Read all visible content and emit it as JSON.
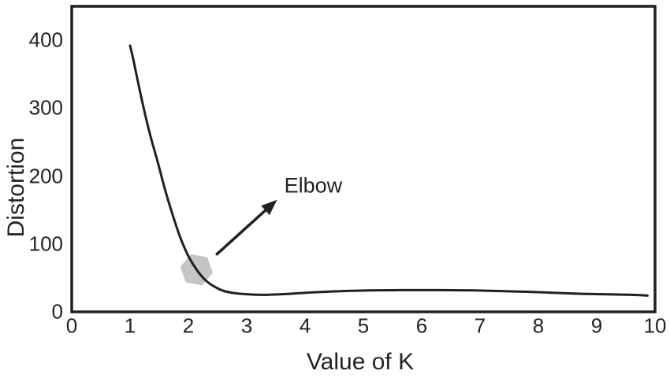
{
  "colors": {
    "background": "#ffffff",
    "line": "#221f20",
    "text": "#242122",
    "box": "#221f20",
    "marker_fill": "#c5c5c5",
    "arrow": "#221f20"
  },
  "chart_data": {
    "type": "line",
    "title": "",
    "xlabel": "Value of K",
    "ylabel": "Distortion",
    "xlim": [
      0,
      10
    ],
    "ylim": [
      0,
      450
    ],
    "x_ticks": [
      "0",
      "1",
      "2",
      "3",
      "4",
      "5",
      "6",
      "7",
      "8",
      "9",
      "10"
    ],
    "x_tick_values": [
      0,
      1,
      2,
      3,
      4,
      5,
      6,
      7,
      8,
      9,
      10
    ],
    "y_ticks": [
      "0",
      "100",
      "200",
      "300",
      "400"
    ],
    "y_tick_values": [
      0,
      100,
      200,
      300,
      400
    ],
    "grid": false,
    "legend": false,
    "series": [
      {
        "name": "distortion-vs-k",
        "color": "#221f20",
        "points": [
          [
            1.0,
            392
          ],
          [
            1.05,
            374
          ],
          [
            1.12,
            345
          ],
          [
            1.22,
            305
          ],
          [
            1.34,
            262
          ],
          [
            1.47,
            222
          ],
          [
            1.6,
            180
          ],
          [
            1.73,
            143
          ],
          [
            1.86,
            110
          ],
          [
            2.0,
            82
          ],
          [
            2.15,
            61
          ],
          [
            2.3,
            46
          ],
          [
            2.45,
            37
          ],
          [
            2.6,
            31
          ],
          [
            2.8,
            27.5
          ],
          [
            3.0,
            26
          ],
          [
            3.3,
            25
          ],
          [
            3.7,
            26.5
          ],
          [
            4.1,
            28.5
          ],
          [
            4.6,
            30.5
          ],
          [
            5.1,
            31.5
          ],
          [
            5.7,
            32
          ],
          [
            6.3,
            32
          ],
          [
            6.9,
            31.5
          ],
          [
            7.4,
            30.5
          ],
          [
            8.0,
            29
          ],
          [
            8.6,
            27
          ],
          [
            9.1,
            26
          ],
          [
            9.6,
            25
          ],
          [
            9.87,
            24
          ]
        ]
      }
    ],
    "annotation": {
      "label": "Elbow",
      "label_pos": {
        "k": 4.14,
        "d": 186
      },
      "arrow": {
        "from": {
          "k": 2.49,
          "d": 85
        },
        "to": {
          "k": 3.52,
          "d": 165
        }
      },
      "marker": {
        "shape": "hexagon",
        "k": 2.14,
        "d": 62,
        "radius_px": 21,
        "rotation_deg": 10,
        "color": "#c5c5c5"
      }
    }
  }
}
